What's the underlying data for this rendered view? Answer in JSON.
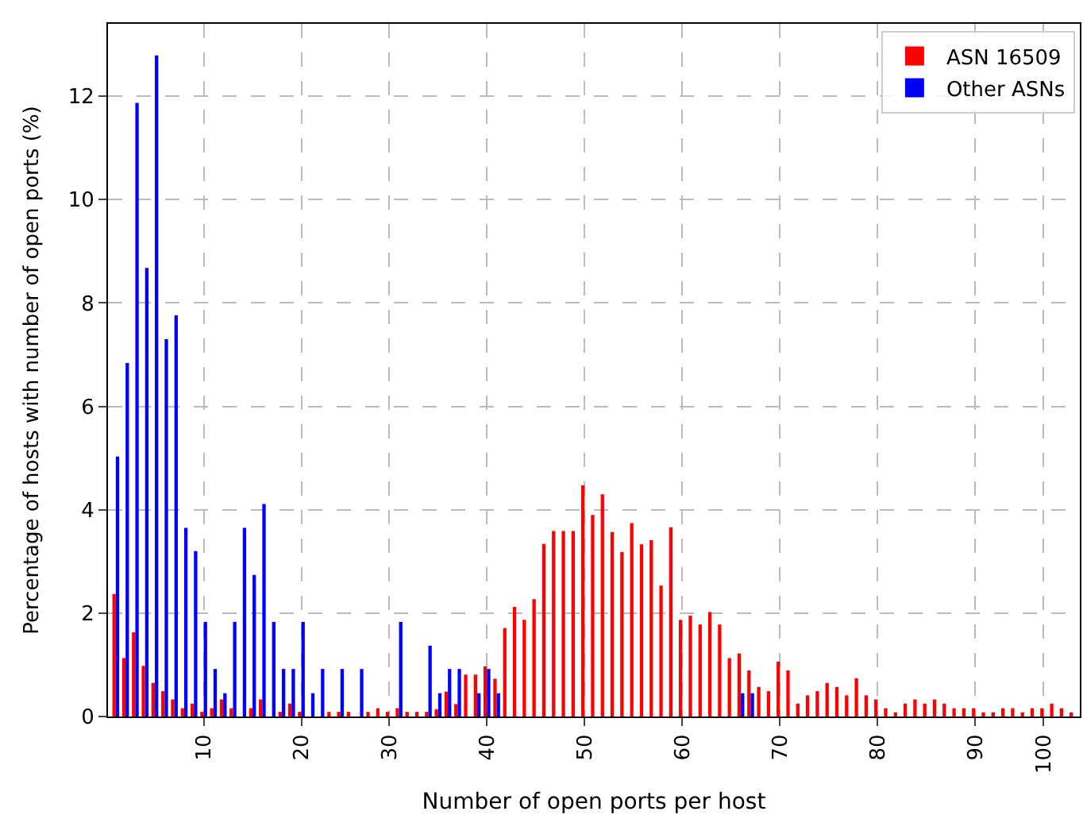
{
  "chart_data": {
    "type": "bar",
    "xlabel": "Number of open ports per host",
    "ylabel": "Percentage of hosts with number of open ports (%)",
    "categories": [
      null,
      null,
      null,
      null,
      null,
      null,
      null,
      null,
      null,
      "10",
      null,
      null,
      null,
      null,
      null,
      null,
      null,
      null,
      null,
      "20",
      null,
      null,
      null,
      null,
      null,
      null,
      null,
      null,
      "30",
      null,
      null,
      null,
      null,
      null,
      null,
      null,
      null,
      null,
      "40",
      null,
      null,
      null,
      null,
      null,
      null,
      null,
      null,
      null,
      "50",
      null,
      null,
      null,
      null,
      null,
      null,
      null,
      null,
      null,
      "60",
      null,
      null,
      null,
      null,
      null,
      null,
      null,
      null,
      null,
      "70",
      null,
      null,
      null,
      null,
      null,
      null,
      null,
      null,
      null,
      "80",
      null,
      null,
      null,
      null,
      null,
      null,
      null,
      null,
      null,
      "90",
      null,
      null,
      null,
      null,
      null,
      null,
      "100",
      null,
      null,
      null
    ],
    "series": [
      {
        "name": "ASN 16509",
        "color": "#ff0000",
        "values": [
          2.37,
          1.13,
          1.63,
          0.98,
          0.65,
          0.49,
          0.33,
          0.16,
          0.25,
          0.09,
          0.16,
          0.33,
          0.16,
          null,
          0.16,
          0.33,
          null,
          0.09,
          0.25,
          0.09,
          null,
          null,
          0.09,
          0.09,
          0.09,
          null,
          0.09,
          0.16,
          0.09,
          0.16,
          0.09,
          0.09,
          0.09,
          0.14,
          0.48,
          0.24,
          0.81,
          0.81,
          0.97,
          0.73,
          1.71,
          2.12,
          1.87,
          2.27,
          3.34,
          3.59,
          3.59,
          3.59,
          4.47,
          3.9,
          4.3,
          3.57,
          3.18,
          3.74,
          3.33,
          3.41,
          2.53,
          3.66,
          1.87,
          1.95,
          1.78,
          2.02,
          1.78,
          1.13,
          1.22,
          0.89,
          0.57,
          0.49,
          1.06,
          0.89,
          0.25,
          0.41,
          0.49,
          0.65,
          0.57,
          0.41,
          0.74,
          0.41,
          0.33,
          0.16,
          0.08,
          0.25,
          0.33,
          0.25,
          0.33,
          0.25,
          0.16,
          0.16,
          0.16,
          0.08,
          0.08,
          0.16,
          0.16,
          0.08,
          0.16,
          0.16,
          0.25,
          0.16,
          0.08
        ]
      },
      {
        "name": "Other ASNs",
        "color": "#0000ff",
        "values": [
          5.03,
          6.84,
          11.87,
          8.68,
          12.79,
          7.3,
          7.76,
          3.65,
          3.2,
          1.83,
          0.92,
          0.45,
          1.83,
          3.65,
          2.74,
          4.11,
          1.83,
          0.92,
          0.92,
          1.83,
          0.45,
          0.92,
          null,
          0.92,
          null,
          0.92,
          null,
          null,
          null,
          1.83,
          null,
          null,
          1.37,
          0.45,
          0.92,
          0.92,
          null,
          0.45,
          0.92,
          0.45,
          null,
          null,
          null,
          null,
          null,
          null,
          null,
          null,
          null,
          null,
          null,
          null,
          null,
          null,
          null,
          null,
          null,
          null,
          null,
          null,
          null,
          null,
          null,
          null,
          0.45,
          0.45,
          null,
          null,
          null,
          null,
          null,
          null,
          null,
          null,
          null,
          null,
          null,
          null,
          null,
          null,
          null,
          null,
          null,
          null,
          null,
          null,
          null,
          null,
          null,
          null,
          null,
          null,
          null,
          null,
          null,
          null,
          null,
          null,
          null
        ]
      }
    ],
    "ylim": [
      0,
      13.4
    ],
    "yticks": [
      0,
      2,
      4,
      6,
      8,
      10,
      12
    ],
    "grid": true,
    "legend": "top right"
  }
}
